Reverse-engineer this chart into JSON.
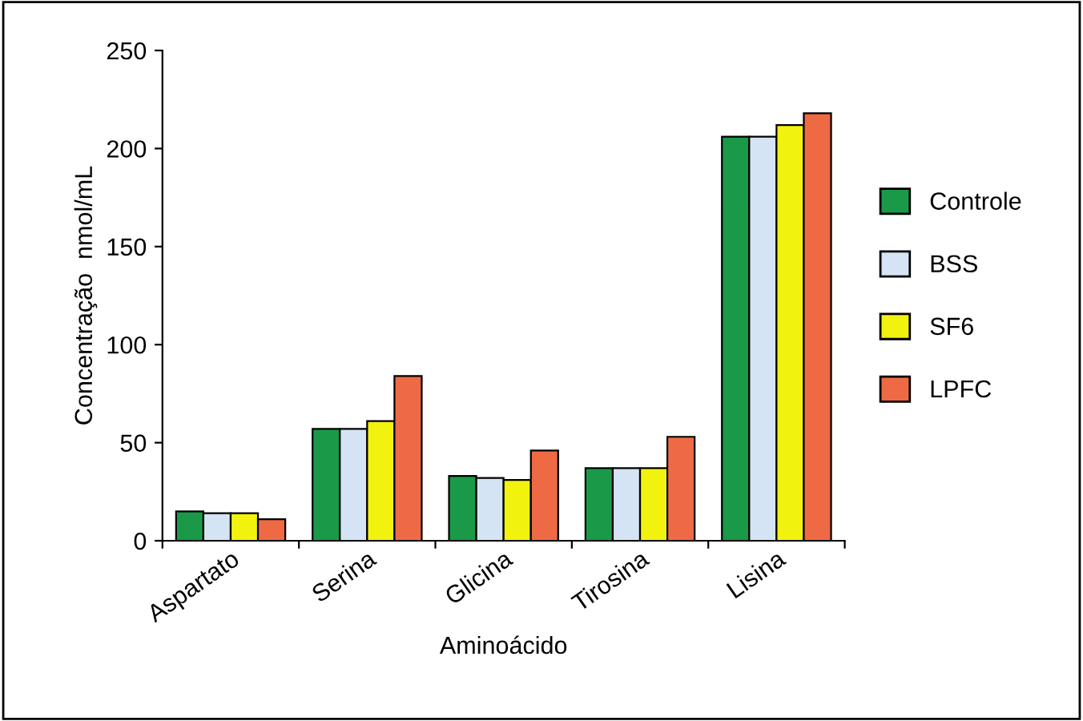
{
  "chart_data": {
    "type": "bar",
    "xlabel": "Aminoácido",
    "ylabel": "Concentração  nmol/mL",
    "categories": [
      "Aspartato",
      "Serina",
      "Glicina",
      "Tirosina",
      "Lisina"
    ],
    "series": [
      {
        "name": "Controle",
        "color": "#1a9a48",
        "values": [
          15,
          57,
          33,
          37,
          206
        ]
      },
      {
        "name": "BSS",
        "color": "#d4e4f4",
        "values": [
          14,
          57,
          32,
          37,
          206
        ]
      },
      {
        "name": "SF6",
        "color": "#f2f20f",
        "values": [
          14,
          61,
          31,
          37,
          212
        ]
      },
      {
        "name": "LPFC",
        "color": "#ee6a45",
        "values": [
          11,
          84,
          46,
          53,
          218
        ]
      }
    ],
    "ylim": [
      0,
      250
    ],
    "yticks": [
      0,
      50,
      100,
      150,
      200,
      250
    ],
    "grid": false,
    "legend": "right"
  }
}
